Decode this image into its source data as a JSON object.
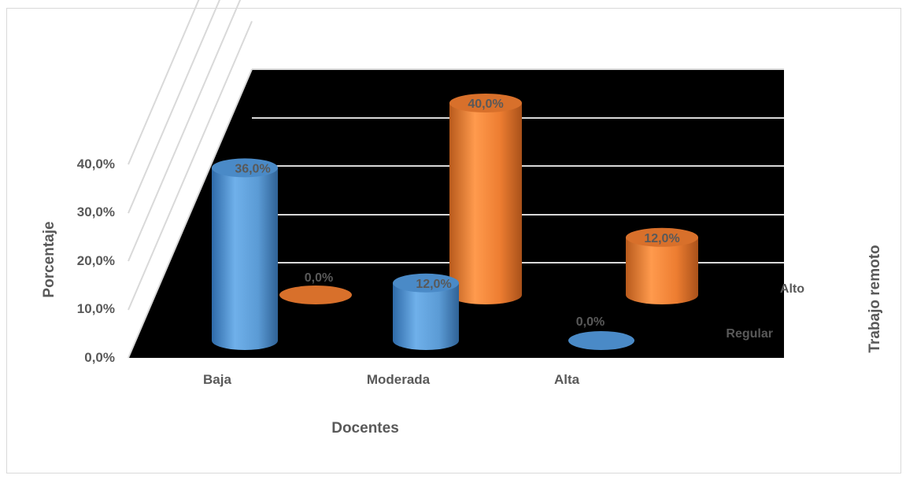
{
  "chart_data": {
    "type": "bar",
    "xlabel": "Docentes",
    "ylabel": "Porcentaje",
    "zlabel": "Trabajo remoto",
    "categories": [
      "Baja",
      "Moderada",
      "Alta"
    ],
    "series": [
      {
        "name": "Regular",
        "values": [
          36.0,
          12.0,
          0.0
        ],
        "labels": [
          "36,0%",
          "12,0%",
          "0,0%"
        ],
        "color": "#5b9bd5"
      },
      {
        "name": "Alto",
        "values": [
          0.0,
          40.0,
          12.0
        ],
        "labels": [
          "0,0%",
          "40,0%",
          "12,0%"
        ],
        "color": "#ed7d31"
      }
    ],
    "yticks": [
      "0,0%",
      "10,0%",
      "20,0%",
      "30,0%",
      "40,0%"
    ],
    "ylim": [
      0,
      50
    ],
    "background": "#000000",
    "gridlines": true
  }
}
